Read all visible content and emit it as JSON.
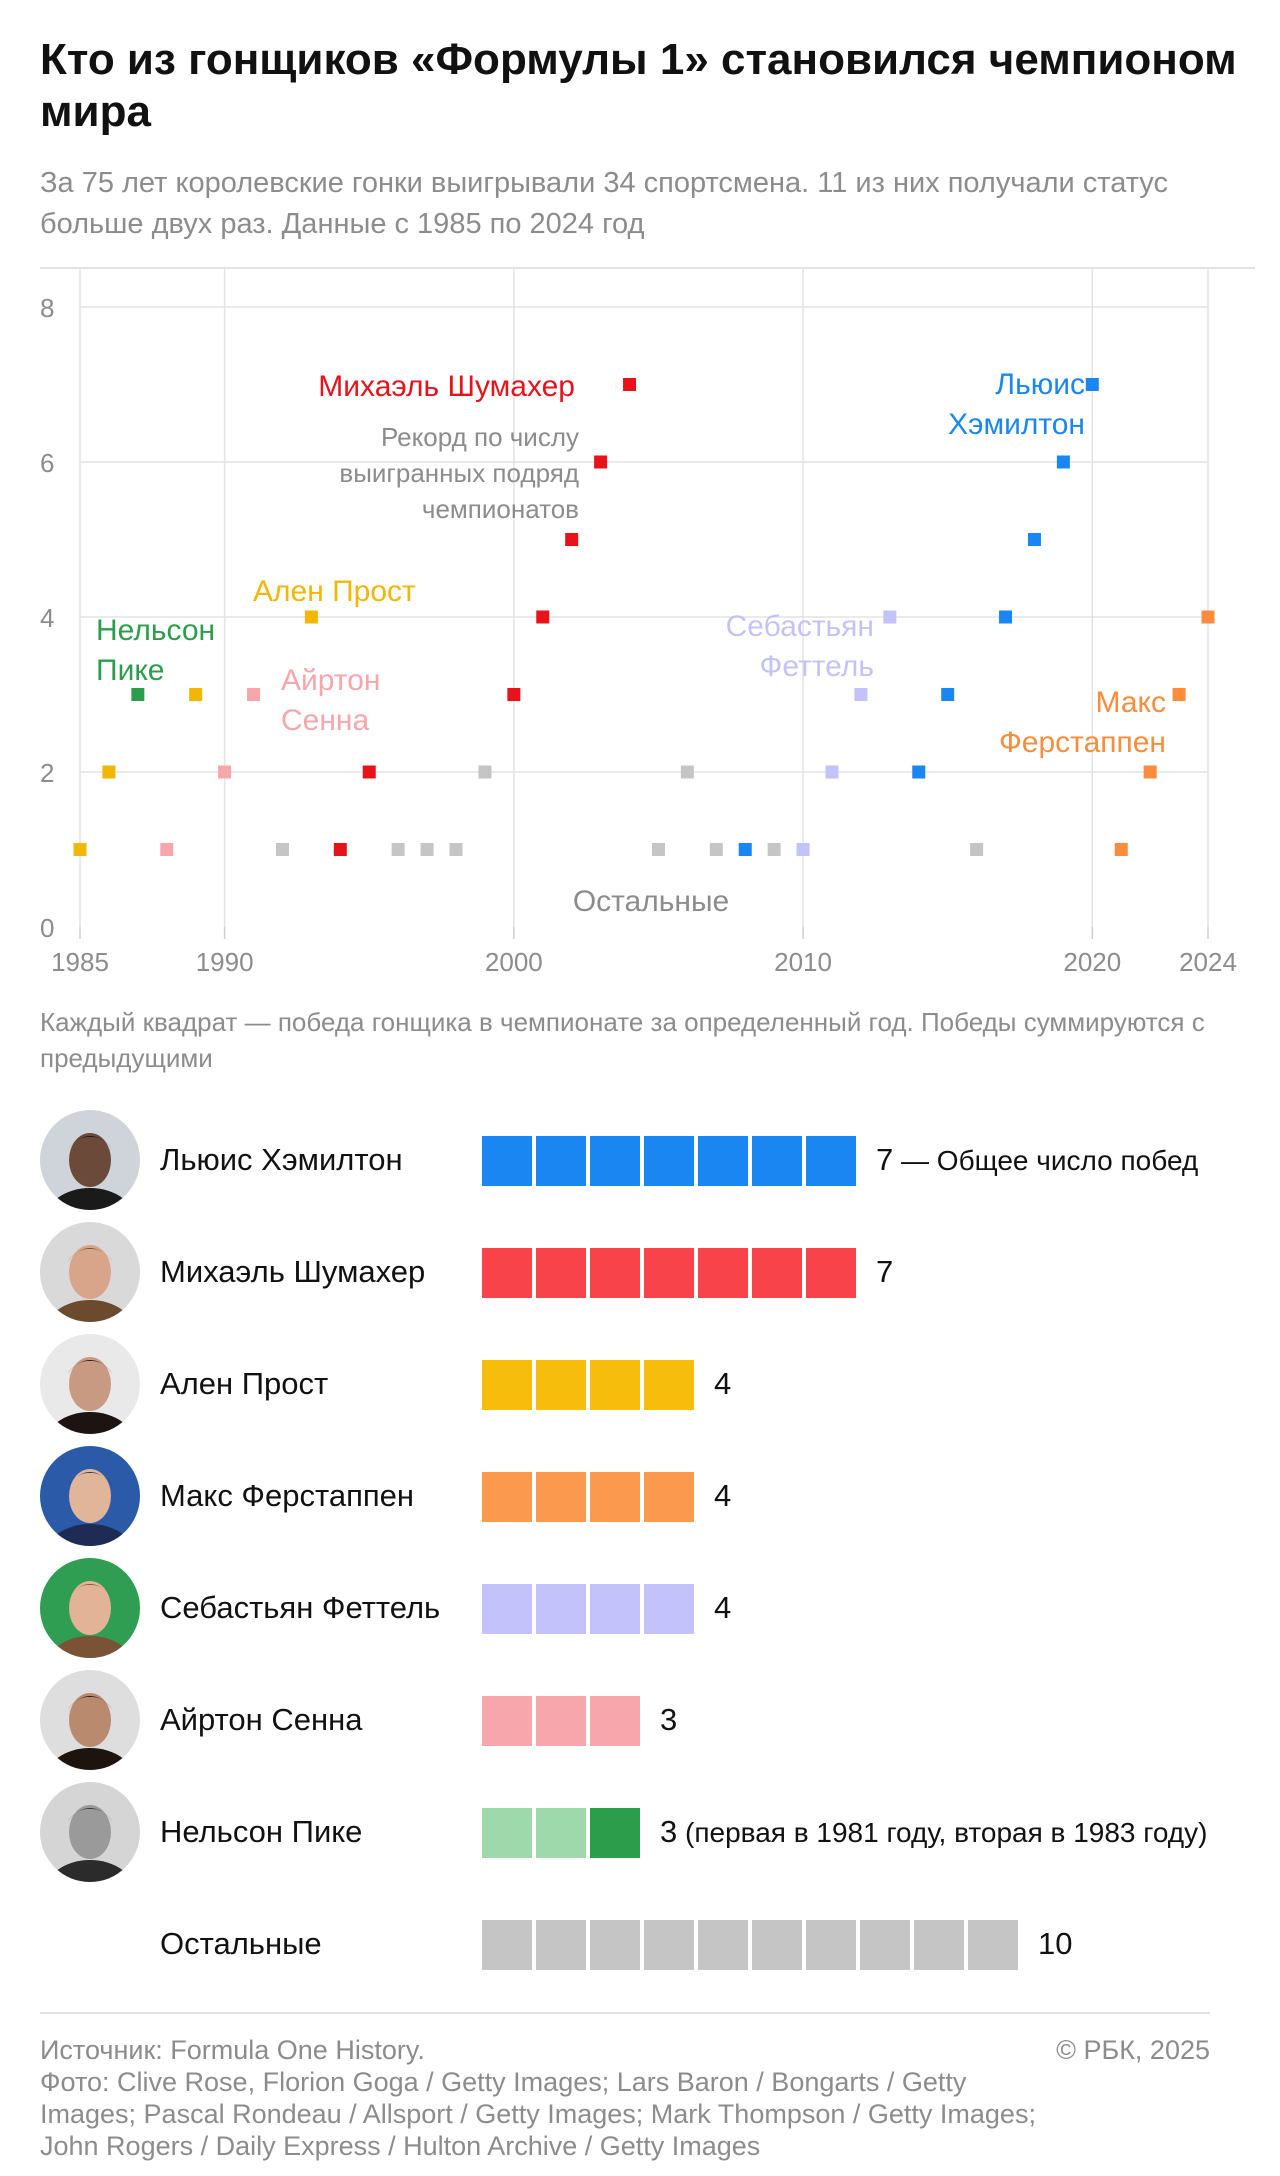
{
  "title": "Кто из гонщиков «Формулы 1» становился чемпионом мира",
  "subtitle": "За 75 лет королевские гонки выигрывали 34 спортсмена. 11 из них получали статус больше двух раз. Данные с 1985 по 2024 год",
  "colors": {
    "hamilton": "#1a86f2",
    "schumacher": "#e8121b",
    "schumacher_bar": "#f8434b",
    "prost": "#f2b705",
    "prost_bar": "#f6bd0c",
    "verstappen": "#fb8c3c",
    "verstappen_bar": "#fb9a4f",
    "vettel": "#c4c2fa",
    "senna": "#f7a6ab",
    "piquet": "#2c9e4b",
    "piquet_light": "#9ed9ab",
    "others": "#c5c5c5",
    "grid": "#e3e3e3",
    "muted_text": "#8c8c8c"
  },
  "chart_data": {
    "type": "scatter",
    "xlim": [
      1985,
      2024
    ],
    "ylim": [
      0,
      8
    ],
    "x_ticks": [
      1985,
      1990,
      2000,
      2010,
      2020,
      2024
    ],
    "y_ticks": [
      0,
      2,
      4,
      6,
      8
    ],
    "grid": true,
    "series": [
      {
        "key": "piquet",
        "name": "Нельсон Пике",
        "color": "#2c9e4b",
        "points": [
          [
            1987,
            3
          ]
        ]
      },
      {
        "key": "prost",
        "name": "Ален Прост",
        "color": "#f2b705",
        "points": [
          [
            1985,
            1
          ],
          [
            1986,
            2
          ],
          [
            1989,
            3
          ],
          [
            1993,
            4
          ]
        ]
      },
      {
        "key": "senna",
        "name": "Айртон Сенна",
        "color": "#f7a6ab",
        "points": [
          [
            1988,
            1
          ],
          [
            1990,
            2
          ],
          [
            1991,
            3
          ]
        ]
      },
      {
        "key": "schumacher",
        "name": "Михаэль Шумахер",
        "color": "#e8121b",
        "points": [
          [
            1994,
            1
          ],
          [
            1995,
            2
          ],
          [
            2000,
            3
          ],
          [
            2001,
            4
          ],
          [
            2002,
            5
          ],
          [
            2003,
            6
          ],
          [
            2004,
            7
          ]
        ]
      },
      {
        "key": "vettel",
        "name": "Себастьян Феттель",
        "color": "#c4c2fa",
        "points": [
          [
            2010,
            1
          ],
          [
            2011,
            2
          ],
          [
            2012,
            3
          ],
          [
            2013,
            4
          ]
        ]
      },
      {
        "key": "hamilton",
        "name": "Льюис Хэмилтон",
        "color": "#1a86f2",
        "points": [
          [
            2008,
            1
          ],
          [
            2014,
            2
          ],
          [
            2015,
            3
          ],
          [
            2017,
            4
          ],
          [
            2018,
            5
          ],
          [
            2019,
            6
          ],
          [
            2020,
            7
          ]
        ]
      },
      {
        "key": "verstappen",
        "name": "Макс Ферстаппен",
        "color": "#fb8c3c",
        "points": [
          [
            2021,
            1
          ],
          [
            2022,
            2
          ],
          [
            2023,
            3
          ],
          [
            2024,
            4
          ]
        ]
      },
      {
        "key": "others",
        "name": "Остальные",
        "color": "#c5c5c5",
        "points": [
          [
            1992,
            1
          ],
          [
            1996,
            1
          ],
          [
            1997,
            1
          ],
          [
            1998,
            1
          ],
          [
            1999,
            2
          ],
          [
            2005,
            1
          ],
          [
            2006,
            2
          ],
          [
            2007,
            1
          ],
          [
            2009,
            1
          ],
          [
            2016,
            1
          ]
        ]
      }
    ],
    "annotations": {
      "schumacher_label": "Михаэль Шумахер",
      "record_note": [
        "Рекорд по числу",
        "выигранных подряд",
        "чемпионатов"
      ],
      "hamilton_label": [
        "Льюис",
        "Хэмилтон"
      ],
      "prost_label": "Ален Прост",
      "piquet_label": [
        "Нельсон",
        "Пике"
      ],
      "senna_label": [
        "Айртон",
        "Сенна"
      ],
      "vettel_label": [
        "Себастьян",
        "Феттель"
      ],
      "verstappen_label": [
        "Макс",
        "Ферстаппен"
      ],
      "others_label": "Остальные"
    }
  },
  "caption": "Каждый квадрат — победа гонщика в чемпионате за определенный год. Победы суммируются с предыдущими",
  "bars": [
    {
      "key": "hamilton",
      "name": "Льюис Хэмилтон",
      "count": 7,
      "value": "7",
      "note": " — Общее число побед",
      "avatar_icon": "hamilton-portrait"
    },
    {
      "key": "schumacher",
      "name": "Михаэль Шумахер",
      "count": 7,
      "value": "7",
      "note": "",
      "avatar_icon": "schumacher-portrait"
    },
    {
      "key": "prost",
      "name": "Ален Прост",
      "count": 4,
      "value": "4",
      "note": "",
      "avatar_icon": "prost-portrait"
    },
    {
      "key": "verstappen",
      "name": "Макс Ферстаппен",
      "count": 4,
      "value": "4",
      "note": "",
      "avatar_icon": "verstappen-portrait"
    },
    {
      "key": "vettel",
      "name": "Себастьян Феттель",
      "count": 4,
      "value": "4",
      "note": "",
      "avatar_icon": "vettel-portrait"
    },
    {
      "key": "senna",
      "name": "Айртон Сенна",
      "count": 3,
      "value": "3",
      "note": "",
      "avatar_icon": "senna-portrait"
    },
    {
      "key": "piquet",
      "name": "Нельсон Пике",
      "count": 3,
      "value": "3",
      "note": " (первая в 1981 году, вторая в 1983 году)",
      "avatar_icon": "piquet-portrait"
    },
    {
      "key": "others",
      "name": "Остальные",
      "count": 10,
      "value": "10",
      "note": "",
      "avatar_icon": ""
    }
  ],
  "footer": {
    "source": "Источник: Formula One History.",
    "photo": "Фото: Clive Rose, Florion Goga / Getty Images; Lars Baron / Bongarts / Getty Images; Pascal Rondeau / Allsport / Getty Images; Mark Thompson / Getty Images; John Rogers / Daily Express / Hulton Archive / Getty Images",
    "copyright": "© РБК, 2025"
  }
}
